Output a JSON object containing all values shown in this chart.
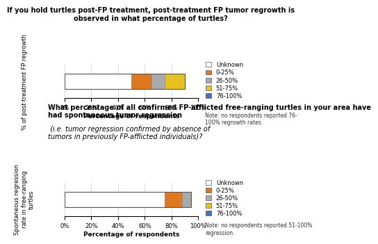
{
  "chart1": {
    "title_bold": "If you hold turtles post-FP treatment, post-treatment FP tumor regrowth is\nobserved in what percentage of turtles?",
    "title_italic": "",
    "ylabel": "% of post-treatment FP regrowth",
    "xlabel": "Percentage of respondents",
    "segments": [
      {
        "label": "Unknown",
        "value": 0.5,
        "color": "#ffffff",
        "edgecolor": "#888888"
      },
      {
        "label": "0-25%",
        "value": 0.15,
        "color": "#e07820",
        "edgecolor": "#888888"
      },
      {
        "label": "26-50%",
        "value": 0.1,
        "color": "#aaaaaa",
        "edgecolor": "#888888"
      },
      {
        "label": "51-75%",
        "value": 0.15,
        "color": "#e8c020",
        "edgecolor": "#888888"
      },
      {
        "label": "76-100%",
        "value": 0.0,
        "color": "#4472c4",
        "edgecolor": "#888888"
      }
    ],
    "note": "Note: no respondents reported 76-\n100% regrowth rates.",
    "xticks": [
      0.0,
      0.2,
      0.4,
      0.6,
      0.8,
      1.0
    ],
    "xticklabels": [
      "0%",
      "20%",
      "40%",
      "60%",
      "80%",
      "100%"
    ]
  },
  "chart2": {
    "title_bold": "What percentage of all confirmed FP-afflicted free-ranging turtles in your area have\nhad spontaneous tumor regression",
    "title_italic": " (i.e. tumor regression confirmed by absence of\ntumors in previously FP-afflicted individuals)?",
    "ylabel": "Spontaneous regression\nrate in free-ranging\nturtles",
    "xlabel": "Percentage of respondents",
    "segments": [
      {
        "label": "Unknown",
        "value": 0.75,
        "color": "#ffffff",
        "edgecolor": "#888888"
      },
      {
        "label": "0-25%",
        "value": 0.13,
        "color": "#e07820",
        "edgecolor": "#888888"
      },
      {
        "label": "26-50%",
        "value": 0.07,
        "color": "#aaaaaa",
        "edgecolor": "#888888"
      },
      {
        "label": "51-75%",
        "value": 0.0,
        "color": "#e8c020",
        "edgecolor": "#888888"
      },
      {
        "label": "76-100%",
        "value": 0.0,
        "color": "#4472c4",
        "edgecolor": "#888888"
      }
    ],
    "note": "Note: no respondents reported 51-100%\nregression.",
    "xticks": [
      0.0,
      0.2,
      0.4,
      0.6,
      0.8,
      1.0
    ],
    "xticklabels": [
      "0%",
      "20%",
      "40%",
      "60%",
      "80%",
      "100%"
    ]
  },
  "legend_labels": [
    "Unknown",
    "0-25%",
    "26-50%",
    "51-75%",
    "76-100%"
  ],
  "legend_colors": [
    "#ffffff",
    "#e07820",
    "#aaaaaa",
    "#e8c020",
    "#4472c4"
  ],
  "background_color": "#ffffff",
  "title_fontsize": 7.0,
  "axis_label_fontsize": 6.5,
  "legend_fontsize": 6.0,
  "tick_fontsize": 6.0,
  "note_fontsize": 5.5,
  "ylabel_fontsize": 6.0
}
